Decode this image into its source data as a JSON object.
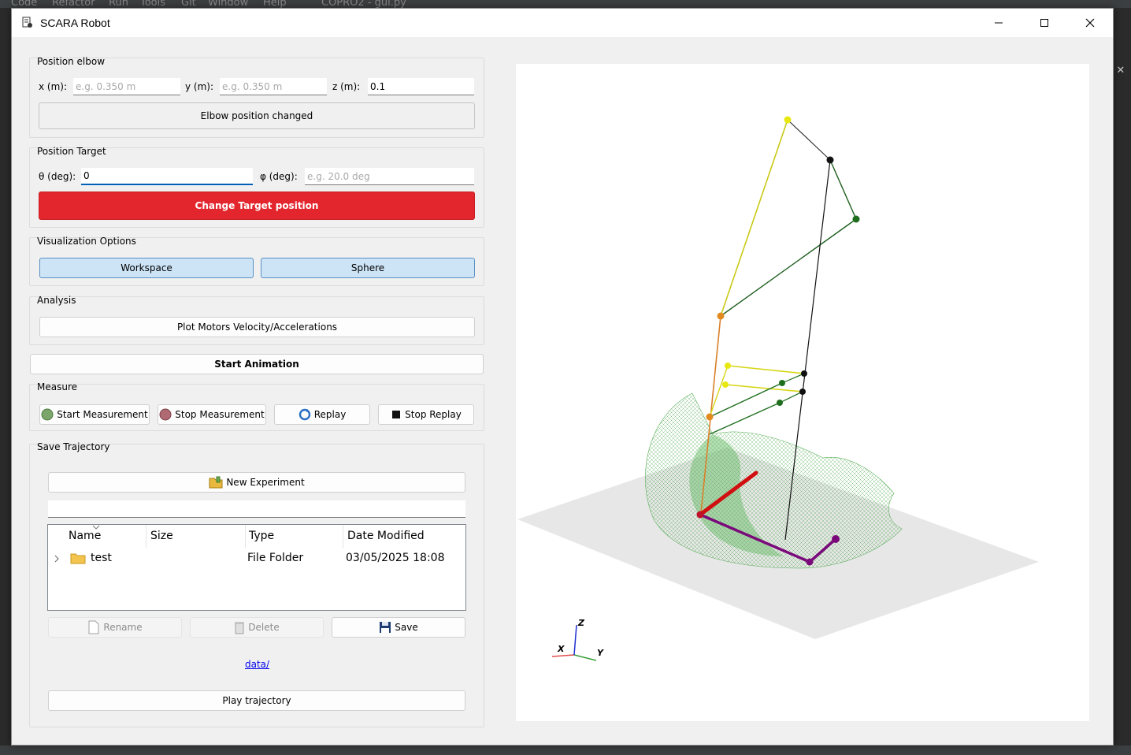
{
  "ide": {
    "menu": [
      "Code",
      "Refactor",
      "Run",
      "Tools",
      "Git",
      "Window",
      "Help"
    ],
    "file_title": "COPRO2 - gui.py"
  },
  "window": {
    "title": "SCARA Robot"
  },
  "elbow": {
    "group_title": "Position elbow",
    "x_label": "x (m):",
    "x_placeholder": "e.g. 0.350 m",
    "y_label": "y (m):",
    "y_placeholder": "e.g. 0.350 m",
    "z_label": "z (m):",
    "z_value": "0.1",
    "button_label": "Elbow position changed"
  },
  "target": {
    "group_title": "Position Target",
    "theta_label": "θ (deg):",
    "theta_value": "0",
    "phi_label": "φ (deg):",
    "phi_placeholder": "e.g. 20.0 deg",
    "button_label": "Change Target position",
    "button_color": "#e3262e"
  },
  "visualization": {
    "group_title": "Visualization Options",
    "workspace_label": "Workspace",
    "sphere_label": "Sphere"
  },
  "analysis": {
    "group_title": "Analysis",
    "plot_label": "Plot Motors Velocity/Accelerations"
  },
  "animation": {
    "start_label": "Start Animation"
  },
  "measure": {
    "group_title": "Measure",
    "start_label": "Start Measurement",
    "stop_label": "Stop Measurement",
    "replay_label": "Replay",
    "stop_replay_label": "Stop Replay"
  },
  "save": {
    "group_title": "Save Trajectory",
    "new_experiment_label": "New Experiment",
    "columns": [
      "Name",
      "Size",
      "Type",
      "Date Modified"
    ],
    "rows": [
      {
        "name": "test",
        "size": "",
        "type": "File Folder",
        "date": "03/05/2025 18:08"
      }
    ],
    "rename_label": "Rename",
    "delete_label": "Delete",
    "save_label": "Save",
    "path_link": "data/",
    "play_label": "Play trajectory"
  },
  "axes": {
    "x": "X",
    "y": "Y",
    "z": "Z"
  }
}
